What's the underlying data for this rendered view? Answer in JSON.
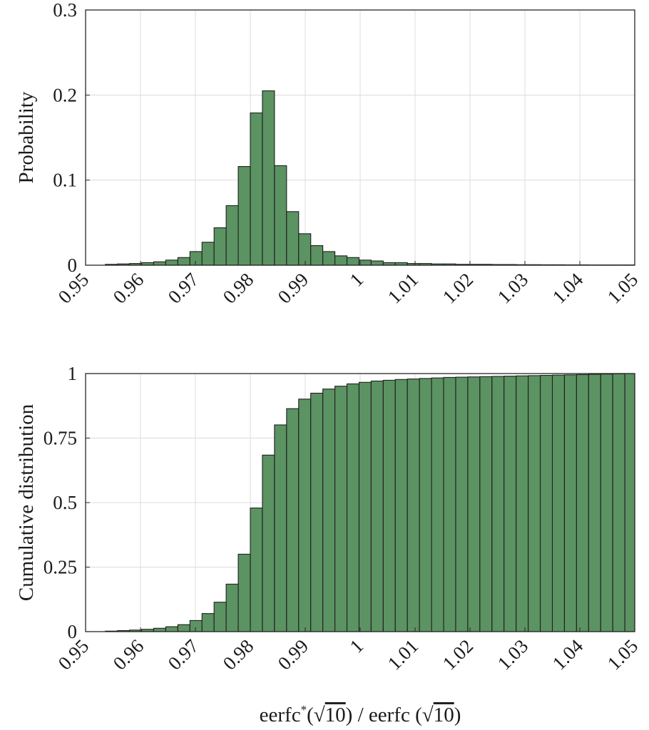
{
  "colors": {
    "bar_fill": "#5b9362",
    "bar_edge": "#1f1f1f",
    "grid": "#dcdcdc",
    "axes": "#262626"
  },
  "xlabel": {
    "prefix": "eerfc",
    "star": "*",
    "sqrt_sign": "√",
    "arg": "10",
    "paren_open": "(",
    "paren_close": ")",
    "divider": " / ",
    "denominator": "eerfc ",
    "full": "eerfc*(√10) / eerfc (√10)"
  },
  "chart_data": [
    {
      "type": "bar",
      "ylabel": "Probability",
      "xlabel": "",
      "xlim": [
        0.95,
        1.05
      ],
      "ylim": [
        0,
        0.3
      ],
      "xticks": [
        0.95,
        0.96,
        0.97,
        0.98,
        0.99,
        1,
        1.01,
        1.02,
        1.03,
        1.04,
        1.05
      ],
      "xtick_labels": [
        "0.95",
        "0.96",
        "0.97",
        "0.98",
        "0.99",
        "1",
        "1.01",
        "1.02",
        "1.03",
        "1.04",
        "1.05"
      ],
      "yticks": [
        0,
        0.1,
        0.2,
        0.3
      ],
      "ytick_labels": [
        "0",
        "0.1",
        "0.2",
        "0.3"
      ],
      "grid": true,
      "bin_width": 0.0022,
      "bins_start": [
        0.9536,
        0.9558,
        0.958,
        0.9602,
        0.9624,
        0.9646,
        0.9668,
        0.969,
        0.9712,
        0.9734,
        0.9756,
        0.9778,
        0.98,
        0.9822,
        0.9844,
        0.9866,
        0.9888,
        0.991,
        0.9932,
        0.9954,
        0.9976,
        0.9998,
        1.002,
        1.0042,
        1.0064,
        1.0086,
        1.0108,
        1.013,
        1.0152,
        1.0174,
        1.0196,
        1.0218,
        1.024,
        1.0262,
        1.0284,
        1.0306,
        1.0328,
        1.035,
        1.0372,
        1.0394,
        1.0416,
        1.0438,
        1.046,
        1.0482
      ],
      "values": [
        0.001,
        0.0015,
        0.002,
        0.003,
        0.004,
        0.006,
        0.009,
        0.016,
        0.027,
        0.044,
        0.07,
        0.116,
        0.179,
        0.205,
        0.117,
        0.063,
        0.037,
        0.023,
        0.016,
        0.011,
        0.009,
        0.006,
        0.005,
        0.003,
        0.003,
        0.002,
        0.002,
        0.0015,
        0.0015,
        0.001,
        0.001,
        0.001,
        0.0008,
        0.0008,
        0.0006,
        0.0006,
        0.0005,
        0.0005,
        0.0004,
        0.0004,
        0.0003,
        0.0003,
        0.0003,
        0.0003
      ]
    },
    {
      "type": "bar",
      "ylabel": "Cumulative distribution",
      "xlabel": "eerfc*(√10) / eerfc (√10)",
      "xlim": [
        0.95,
        1.05
      ],
      "ylim": [
        0,
        1
      ],
      "xticks": [
        0.95,
        0.96,
        0.97,
        0.98,
        0.99,
        1,
        1.01,
        1.02,
        1.03,
        1.04,
        1.05
      ],
      "xtick_labels": [
        "0.95",
        "0.96",
        "0.97",
        "0.98",
        "0.99",
        "1",
        "1.01",
        "1.02",
        "1.03",
        "1.04",
        "1.05"
      ],
      "yticks": [
        0,
        0.25,
        0.5,
        0.75,
        1
      ],
      "ytick_labels": [
        "0",
        "0.25",
        "0.5",
        "0.75",
        "1"
      ],
      "grid": true,
      "bin_width": 0.0022,
      "bins_start": [
        0.9536,
        0.9558,
        0.958,
        0.9602,
        0.9624,
        0.9646,
        0.9668,
        0.969,
        0.9712,
        0.9734,
        0.9756,
        0.9778,
        0.98,
        0.9822,
        0.9844,
        0.9866,
        0.9888,
        0.991,
        0.9932,
        0.9954,
        0.9976,
        0.9998,
        1.002,
        1.0042,
        1.0064,
        1.0086,
        1.0108,
        1.013,
        1.0152,
        1.0174,
        1.0196,
        1.0218,
        1.024,
        1.0262,
        1.0284,
        1.0306,
        1.0328,
        1.035,
        1.0372,
        1.0394,
        1.0416,
        1.0438,
        1.046,
        1.0482
      ],
      "values": [
        0.002,
        0.004,
        0.006,
        0.009,
        0.013,
        0.019,
        0.027,
        0.043,
        0.07,
        0.114,
        0.184,
        0.3,
        0.479,
        0.684,
        0.801,
        0.864,
        0.901,
        0.924,
        0.94,
        0.951,
        0.96,
        0.966,
        0.971,
        0.974,
        0.977,
        0.979,
        0.981,
        0.983,
        0.985,
        0.986,
        0.987,
        0.988,
        0.989,
        0.99,
        0.991,
        0.992,
        0.993,
        0.994,
        0.995,
        0.996,
        0.997,
        0.998,
        0.999,
        1.0
      ]
    }
  ]
}
